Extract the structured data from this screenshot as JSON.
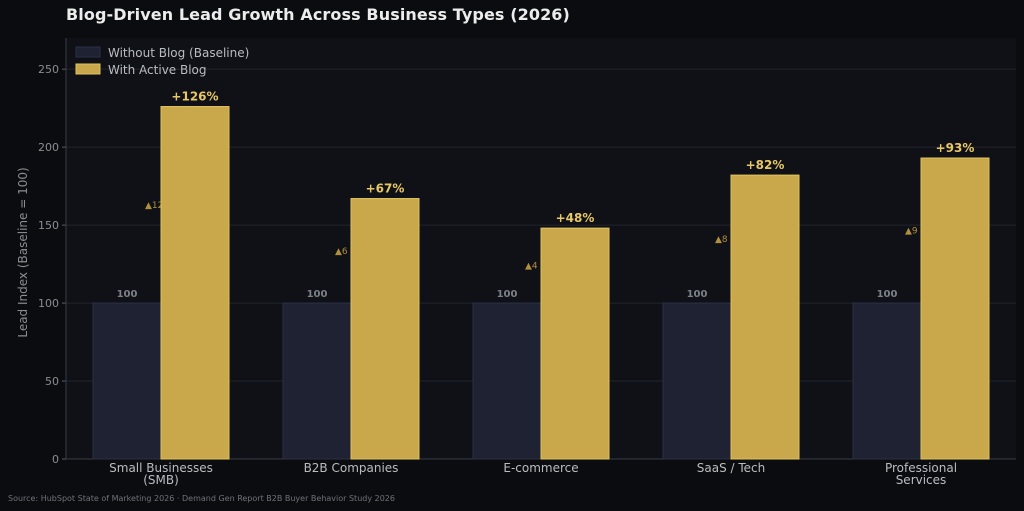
{
  "source": "Source: HubSpot State of Marketing 2026 · Demand Gen Report B2B Buyer Behavior Study 2026",
  "colors": {
    "background": "#0b0c10",
    "plot_background": "#0f1116",
    "baseline_bar": "#1f2233",
    "blog_bar": "#c9a84c",
    "blog_label": "#e8c766",
    "gridline": "#22252e"
  },
  "chart_data": {
    "type": "bar",
    "title": "Blog-Driven Lead Growth Across Business Types (2026)",
    "ylabel": "Lead Index (Baseline = 100)",
    "xlabel": "",
    "ylim": [
      0,
      270
    ],
    "yticks": [
      0,
      50,
      100,
      150,
      200,
      250
    ],
    "grid": true,
    "legend_position": "top-left",
    "categories": [
      [
        "Small Businesses",
        "(SMB)"
      ],
      [
        "B2B Companies"
      ],
      [
        "E-commerce"
      ],
      [
        "SaaS / Tech"
      ],
      [
        "Professional",
        "Services"
      ]
    ],
    "series": [
      {
        "name": "Without Blog (Baseline)",
        "values": [
          100,
          100,
          100,
          100,
          100
        ],
        "labels": [
          "100",
          "100",
          "100",
          "100",
          "100"
        ]
      },
      {
        "name": "With Active Blog",
        "values": [
          226,
          167,
          148,
          182,
          193
        ],
        "labels": [
          "+126%",
          "+67%",
          "+48%",
          "+82%",
          "+93%"
        ],
        "side_labels": [
          "▲12",
          "▲6",
          "▲4",
          "▲8",
          "▲9"
        ]
      }
    ]
  }
}
